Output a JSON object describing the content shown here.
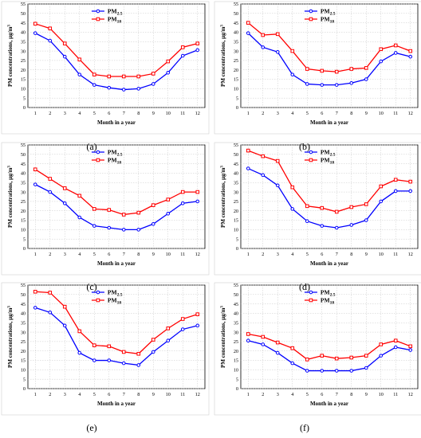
{
  "figure": {
    "chart_data": [
      {
        "type": "line",
        "panel_label": "(a)",
        "x": [
          1,
          2,
          3,
          4,
          5,
          6,
          7,
          8,
          9,
          10,
          11,
          12
        ],
        "xlabel": "Month in a year",
        "ylabel": "PM concentrations, µg/m³",
        "ylim": [
          0,
          55
        ],
        "grid": true,
        "legend": "top-center",
        "series": [
          {
            "name": "PM2.5",
            "color": "#0000ff",
            "marker": "circle",
            "values": [
              39.5,
              35.5,
              27,
              17.5,
              12,
              10.5,
              9.5,
              10,
              12.5,
              18.5,
              27.5,
              30.5
            ]
          },
          {
            "name": "PM10",
            "color": "#ff0000",
            "marker": "square",
            "values": [
              44.5,
              42,
              34,
              25.5,
              17.5,
              16.5,
              16.5,
              16.5,
              18,
              24.5,
              32,
              34
            ]
          }
        ]
      },
      {
        "type": "line",
        "panel_label": "(b)",
        "x": [
          1,
          2,
          3,
          4,
          5,
          6,
          7,
          8,
          9,
          10,
          11,
          12
        ],
        "xlabel": "Month in a year",
        "ylabel": "PM concentrations, µg/m³",
        "ylim": [
          0,
          55
        ],
        "grid": true,
        "legend": "top-center",
        "series": [
          {
            "name": "PM2.5",
            "color": "#0000ff",
            "marker": "circle",
            "values": [
              39.5,
              32,
              29.5,
              17.5,
              12.5,
              12,
              12,
              13,
              15,
              24.5,
              29,
              27
            ]
          },
          {
            "name": "PM10",
            "color": "#ff0000",
            "marker": "square",
            "values": [
              45,
              38.5,
              39,
              30,
              20.5,
              19.5,
              19,
              20.5,
              21,
              31,
              33,
              30
            ]
          }
        ]
      },
      {
        "type": "line",
        "panel_label": "(c)",
        "x": [
          1,
          2,
          3,
          4,
          5,
          6,
          7,
          8,
          9,
          10,
          11,
          12
        ],
        "xlabel": "Month in a year",
        "ylabel": "PM concentrations, µg/m³",
        "ylim": [
          0,
          55
        ],
        "grid": true,
        "legend": "top-center",
        "series": [
          {
            "name": "PM2.5",
            "color": "#0000ff",
            "marker": "circle",
            "values": [
              34,
              30,
              24,
              16.5,
              12,
              11,
              10,
              10,
              13,
              18.5,
              24,
              25
            ]
          },
          {
            "name": "PM10",
            "color": "#ff0000",
            "marker": "square",
            "values": [
              42,
              37,
              32,
              28,
              21,
              20.5,
              18,
              19,
              23,
              26,
              30,
              30
            ]
          }
        ]
      },
      {
        "type": "line",
        "panel_label": "(d)",
        "x": [
          1,
          2,
          3,
          4,
          5,
          6,
          7,
          8,
          9,
          10,
          11,
          12
        ],
        "xlabel": "Month in a year",
        "ylabel": "PM concentrations, µg/m³",
        "ylim": [
          0,
          55
        ],
        "grid": true,
        "legend": "top-center",
        "series": [
          {
            "name": "PM2.5",
            "color": "#0000ff",
            "marker": "circle",
            "values": [
              42.5,
              39,
              33.5,
              21,
              14.5,
              12,
              11,
              12.5,
              15,
              25,
              30.5,
              30.5
            ]
          },
          {
            "name": "PM10",
            "color": "#ff0000",
            "marker": "square",
            "values": [
              52,
              49,
              46.5,
              32.5,
              22.5,
              21.5,
              19.5,
              22,
              23.5,
              33,
              36.5,
              35.5
            ]
          }
        ]
      },
      {
        "type": "line",
        "panel_label": "(e)",
        "x": [
          1,
          2,
          3,
          4,
          5,
          6,
          7,
          8,
          9,
          10,
          11,
          12
        ],
        "xlabel": "Month in a year",
        "ylabel": "PM concentrations, µg/m³",
        "ylim": [
          0,
          55
        ],
        "grid": true,
        "legend": "top-center",
        "series": [
          {
            "name": "PM2.5",
            "color": "#0000ff",
            "marker": "circle",
            "values": [
              43,
              40.5,
              33.5,
              19,
              15,
              15,
              13.5,
              12.5,
              19.5,
              25.5,
              31.5,
              33.5
            ]
          },
          {
            "name": "PM10",
            "color": "#ff0000",
            "marker": "square",
            "values": [
              51.5,
              51,
              43.5,
              30.5,
              23,
              22.5,
              19.5,
              18.5,
              26,
              32,
              37,
              39.5
            ]
          }
        ]
      },
      {
        "type": "line",
        "panel_label": "(f)",
        "x": [
          1,
          2,
          3,
          4,
          5,
          6,
          7,
          8,
          9,
          10,
          11,
          12
        ],
        "xlabel": "Month in a year",
        "ylabel": "PM concentrations, µg/m³",
        "ylim": [
          0,
          55
        ],
        "grid": true,
        "legend": "top-center",
        "series": [
          {
            "name": "PM2.5",
            "color": "#0000ff",
            "marker": "circle",
            "values": [
              25.5,
              23.5,
              19,
              13.5,
              9.5,
              9.5,
              9.5,
              9.5,
              11,
              17.5,
              22,
              20.5
            ]
          },
          {
            "name": "PM10",
            "color": "#ff0000",
            "marker": "square",
            "values": [
              29,
              27.5,
              24.5,
              21.5,
              15.5,
              17.5,
              16,
              16.5,
              17.5,
              23.5,
              25.5,
              22.5
            ]
          }
        ]
      }
    ]
  }
}
